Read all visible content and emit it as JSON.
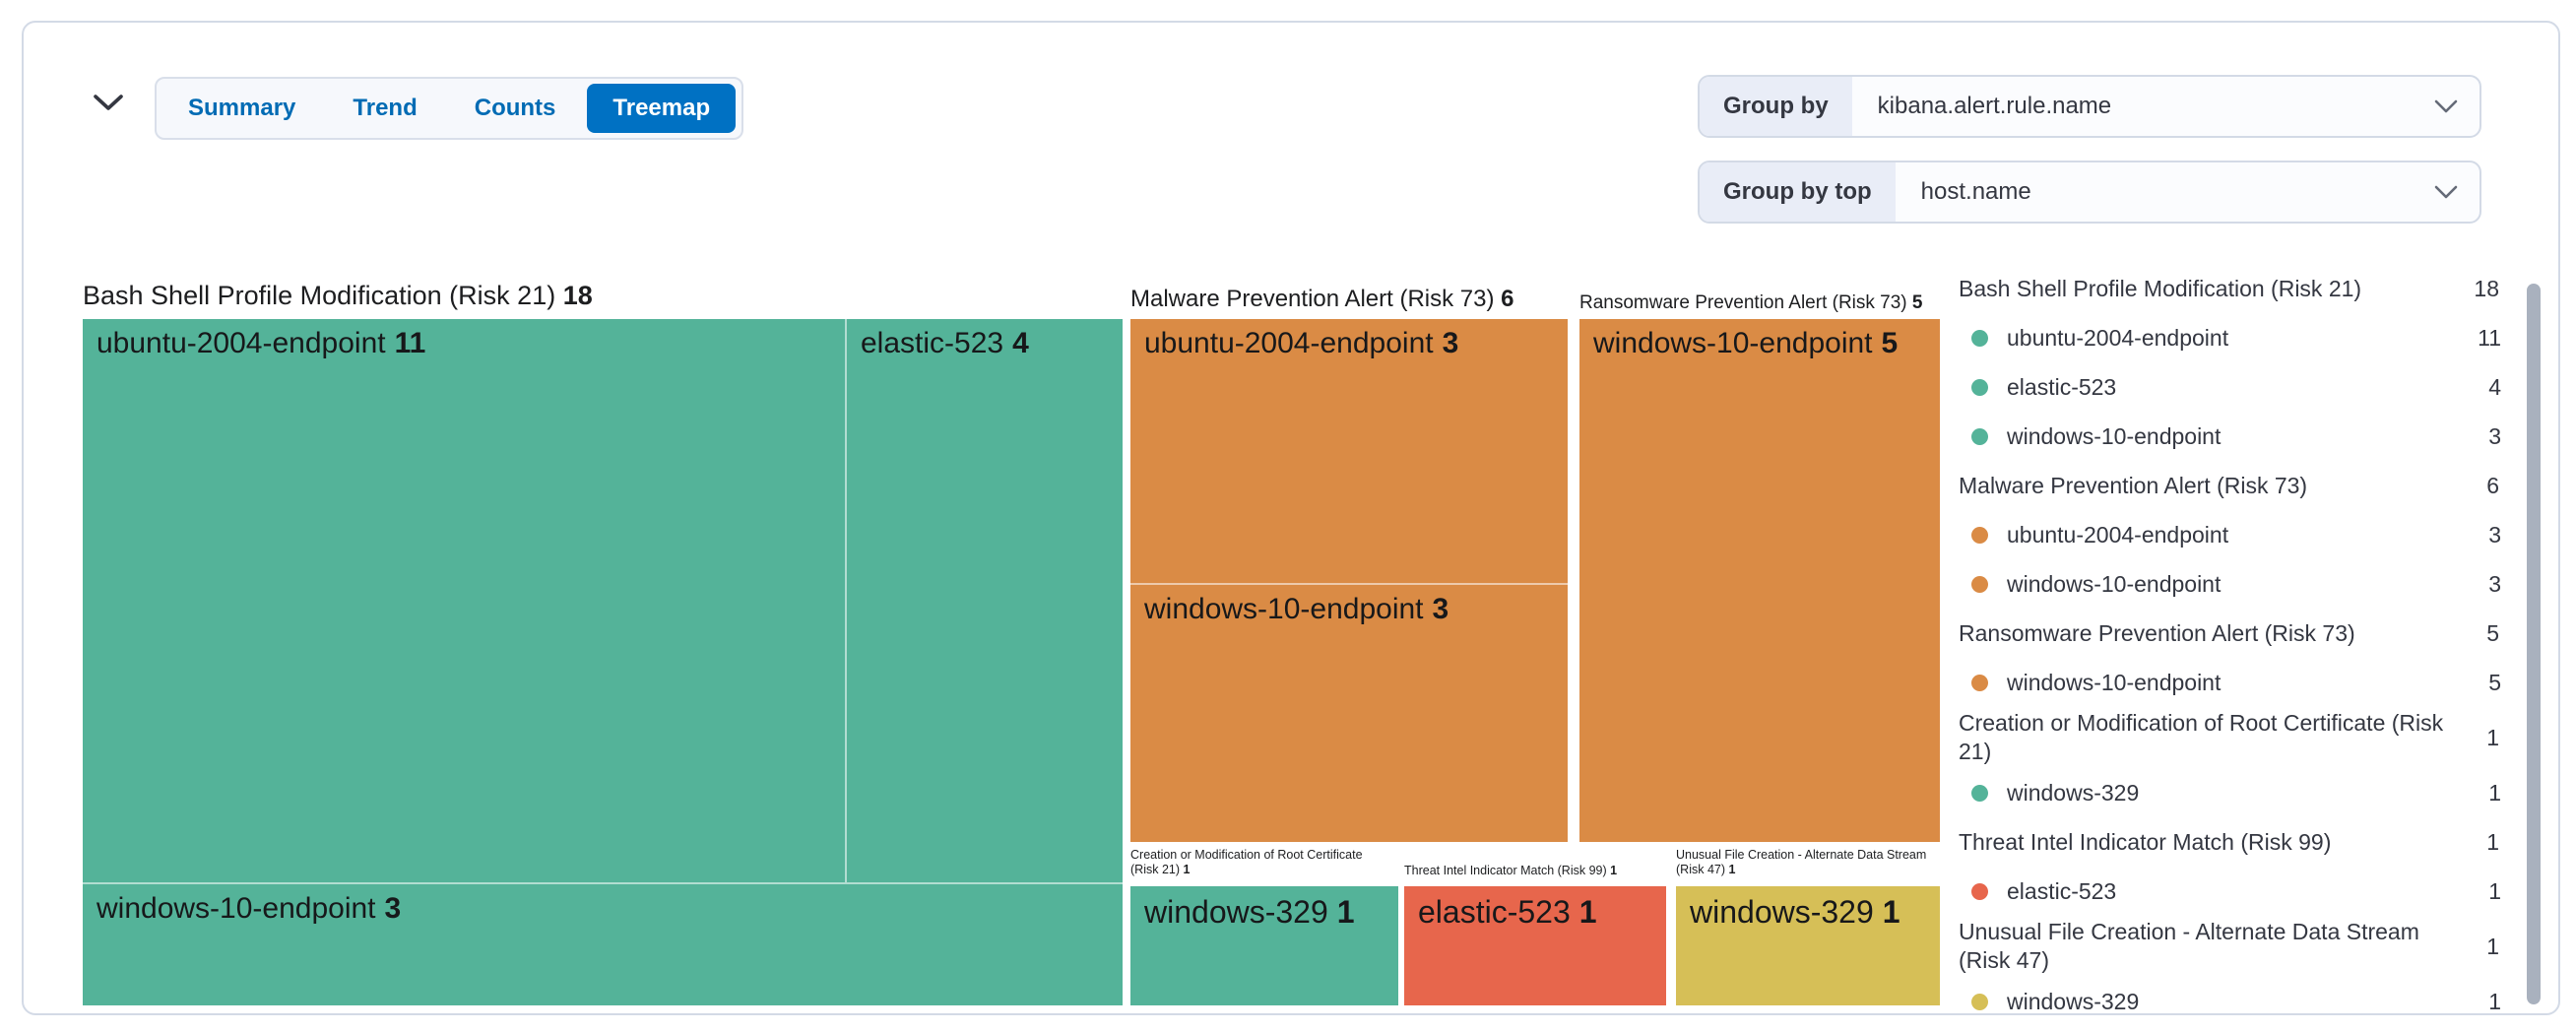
{
  "header": {
    "collapse_icon": "chevron-down",
    "tabs": [
      {
        "label": "Summary",
        "selected": false
      },
      {
        "label": "Trend",
        "selected": false
      },
      {
        "label": "Counts",
        "selected": false
      },
      {
        "label": "Treemap",
        "selected": true
      }
    ],
    "controls": [
      {
        "label": "Group by",
        "value": "kibana.alert.rule.name"
      },
      {
        "label": "Group by top",
        "value": "host.name"
      }
    ]
  },
  "colors": {
    "green": "#54B399",
    "orange": "#DA8B45",
    "red": "#E7664C",
    "yellow": "#D6BF57",
    "selected_tab_blue": "#0071C3",
    "tab_text_blue": "#006BB4"
  },
  "chart_data": {
    "type": "treemap",
    "group_field": "kibana.alert.rule.name",
    "child_field": "host.name",
    "legend_position": "right",
    "groups": [
      {
        "name": "Bash Shell Profile Modification (Risk 21)",
        "value": 18,
        "color": "#54B399",
        "children": [
          {
            "name": "ubuntu-2004-endpoint",
            "value": 11
          },
          {
            "name": "elastic-523",
            "value": 4
          },
          {
            "name": "windows-10-endpoint",
            "value": 3
          }
        ]
      },
      {
        "name": "Malware Prevention Alert (Risk 73)",
        "value": 6,
        "color": "#DA8B45",
        "children": [
          {
            "name": "ubuntu-2004-endpoint",
            "value": 3
          },
          {
            "name": "windows-10-endpoint",
            "value": 3
          }
        ]
      },
      {
        "name": "Ransomware Prevention Alert (Risk 73)",
        "value": 5,
        "color": "#DA8B45",
        "children": [
          {
            "name": "windows-10-endpoint",
            "value": 5
          }
        ]
      },
      {
        "name": "Creation or Modification of Root Certificate (Risk 21)",
        "value": 1,
        "color": "#54B399",
        "children": [
          {
            "name": "windows-329",
            "value": 1
          }
        ]
      },
      {
        "name": "Threat Intel Indicator Match (Risk 99)",
        "value": 1,
        "color": "#E7664C",
        "children": [
          {
            "name": "elastic-523",
            "value": 1
          }
        ]
      },
      {
        "name": "Unusual File Creation - Alternate Data Stream (Risk 47)",
        "value": 1,
        "color": "#D6BF57",
        "children": [
          {
            "name": "windows-329",
            "value": 1
          }
        ]
      }
    ]
  }
}
